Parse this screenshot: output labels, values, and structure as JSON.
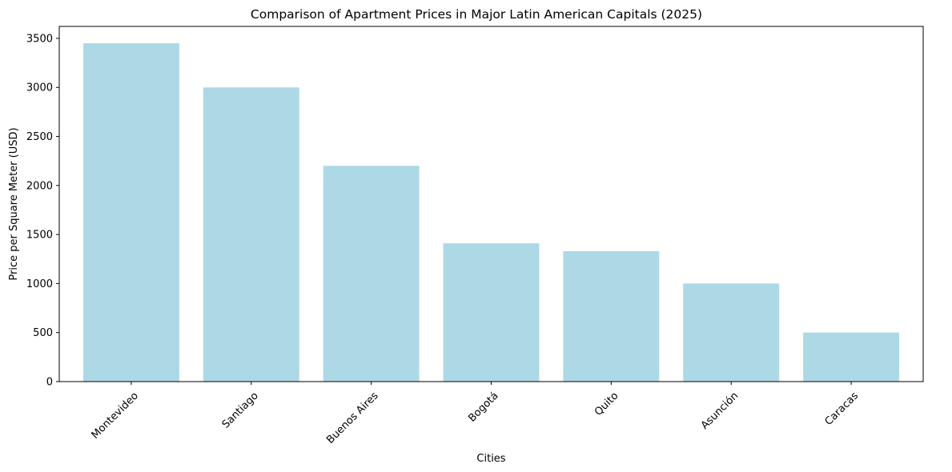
{
  "chart_data": {
    "type": "bar",
    "title": "Comparison of Apartment Prices in Major Latin American Capitals (2025)",
    "xlabel": "Cities",
    "ylabel": "Price per Square Meter (USD)",
    "categories": [
      "Montevideo",
      "Santiago",
      "Buenos Aires",
      "Bogotá",
      "Quito",
      "Asunción",
      "Caracas"
    ],
    "values": [
      3450,
      3000,
      2200,
      1410,
      1330,
      1000,
      500
    ],
    "ylim": [
      0,
      3622
    ],
    "yticks": [
      0,
      500,
      1000,
      1500,
      2000,
      2500,
      3000,
      3500
    ],
    "xtick_rotation_deg": 45,
    "bar_color": "#add8e6",
    "grid": false,
    "legend": "none"
  }
}
